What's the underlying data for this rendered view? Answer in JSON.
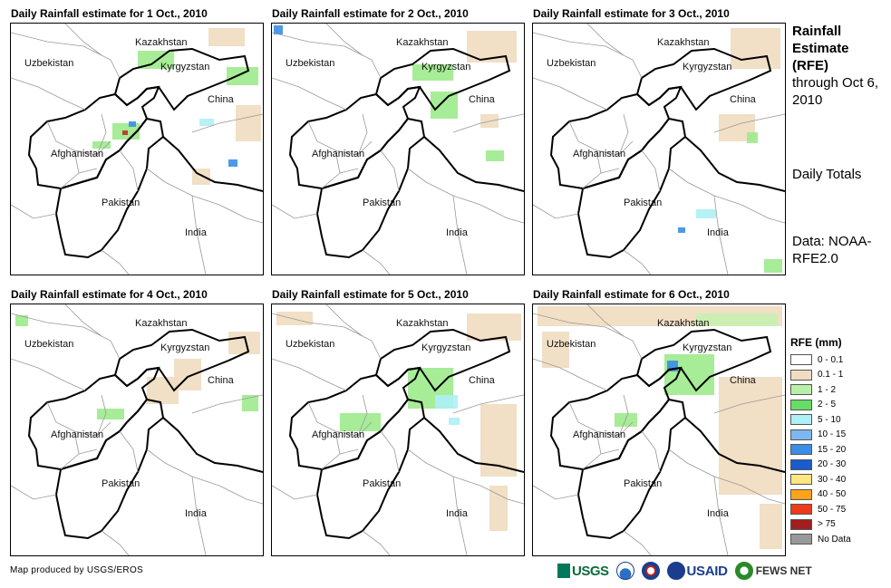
{
  "panels": [
    {
      "title": "Daily Rainfall estimate for 1 Oct., 2010",
      "rain": [
        {
          "x": 218,
          "y": 5,
          "w": 40,
          "h": 20,
          "c": "#f0dcc0"
        },
        {
          "x": 140,
          "y": 30,
          "w": 40,
          "h": 20,
          "c": "#9dea8c"
        },
        {
          "x": 238,
          "y": 48,
          "w": 35,
          "h": 20,
          "c": "#9dea8c"
        },
        {
          "x": 112,
          "y": 110,
          "w": 30,
          "h": 18,
          "c": "#9dea8c"
        },
        {
          "x": 130,
          "y": 108,
          "w": 8,
          "h": 6,
          "c": "#3a8ee6"
        },
        {
          "x": 123,
          "y": 118,
          "w": 6,
          "h": 5,
          "c": "#c03020"
        },
        {
          "x": 90,
          "y": 130,
          "w": 20,
          "h": 8,
          "c": "#9dea8c"
        },
        {
          "x": 248,
          "y": 90,
          "w": 28,
          "h": 40,
          "c": "#f0dcc0"
        },
        {
          "x": 208,
          "y": 105,
          "w": 16,
          "h": 8,
          "c": "#aef0f5"
        },
        {
          "x": 240,
          "y": 150,
          "w": 10,
          "h": 8,
          "c": "#3a8ee6"
        },
        {
          "x": 200,
          "y": 160,
          "w": 20,
          "h": 18,
          "c": "#f0dcc0"
        }
      ]
    },
    {
      "title": "Daily Rainfall estimate for 2 Oct., 2010",
      "rain": [
        {
          "x": 2,
          "y": 2,
          "w": 10,
          "h": 10,
          "c": "#3a8ee6"
        },
        {
          "x": 215,
          "y": 8,
          "w": 55,
          "h": 35,
          "c": "#f0dcc0"
        },
        {
          "x": 155,
          "y": 45,
          "w": 45,
          "h": 18,
          "c": "#9dea8c"
        },
        {
          "x": 175,
          "y": 75,
          "w": 30,
          "h": 30,
          "c": "#9dea8c"
        },
        {
          "x": 230,
          "y": 100,
          "w": 20,
          "h": 15,
          "c": "#f0dcc0"
        },
        {
          "x": 236,
          "y": 140,
          "w": 20,
          "h": 12,
          "c": "#9dea8c"
        }
      ]
    },
    {
      "title": "Daily Rainfall estimate for 3 Oct., 2010",
      "rain": [
        {
          "x": 218,
          "y": 5,
          "w": 55,
          "h": 45,
          "c": "#f0dcc0"
        },
        {
          "x": 205,
          "y": 100,
          "w": 40,
          "h": 30,
          "c": "#f0dcc0"
        },
        {
          "x": 236,
          "y": 120,
          "w": 12,
          "h": 12,
          "c": "#9dea8c"
        },
        {
          "x": 180,
          "y": 205,
          "w": 22,
          "h": 10,
          "c": "#aef0f5"
        },
        {
          "x": 160,
          "y": 225,
          "w": 8,
          "h": 6,
          "c": "#3a8ee6"
        },
        {
          "x": 255,
          "y": 260,
          "w": 20,
          "h": 15,
          "c": "#9dea8c"
        }
      ]
    },
    {
      "title": "Daily Rainfall estimate for 4 Oct., 2010",
      "rain": [
        {
          "x": 5,
          "y": 12,
          "w": 14,
          "h": 12,
          "c": "#9dea8c"
        },
        {
          "x": 240,
          "y": 30,
          "w": 35,
          "h": 25,
          "c": "#f0dcc0"
        },
        {
          "x": 150,
          "y": 80,
          "w": 35,
          "h": 30,
          "c": "#f0dcc0"
        },
        {
          "x": 180,
          "y": 60,
          "w": 30,
          "h": 35,
          "c": "#f0dcc0"
        },
        {
          "x": 95,
          "y": 115,
          "w": 30,
          "h": 12,
          "c": "#9dea8c"
        },
        {
          "x": 255,
          "y": 100,
          "w": 18,
          "h": 18,
          "c": "#9dea8c"
        }
      ]
    },
    {
      "title": "Daily Rainfall estimate for 5 Oct., 2010",
      "rain": [
        {
          "x": 5,
          "y": 8,
          "w": 40,
          "h": 15,
          "c": "#f0dcc0"
        },
        {
          "x": 215,
          "y": 10,
          "w": 60,
          "h": 30,
          "c": "#f0dcc0"
        },
        {
          "x": 150,
          "y": 70,
          "w": 50,
          "h": 45,
          "c": "#9dea8c"
        },
        {
          "x": 180,
          "y": 100,
          "w": 25,
          "h": 15,
          "c": "#aef0f5"
        },
        {
          "x": 75,
          "y": 120,
          "w": 45,
          "h": 20,
          "c": "#9dea8c"
        },
        {
          "x": 230,
          "y": 110,
          "w": 40,
          "h": 80,
          "c": "#f0dcc0"
        },
        {
          "x": 240,
          "y": 200,
          "w": 20,
          "h": 50,
          "c": "#f0dcc0"
        },
        {
          "x": 195,
          "y": 125,
          "w": 12,
          "h": 8,
          "c": "#aef0f5"
        }
      ]
    },
    {
      "title": "Daily Rainfall estimate for 6 Oct., 2010",
      "rain": [
        {
          "x": 5,
          "y": 2,
          "w": 270,
          "h": 22,
          "c": "#f0dcc0"
        },
        {
          "x": 180,
          "y": 10,
          "w": 90,
          "h": 14,
          "c": "#c8f0b0"
        },
        {
          "x": 145,
          "y": 55,
          "w": 55,
          "h": 45,
          "c": "#9dea8c"
        },
        {
          "x": 148,
          "y": 62,
          "w": 12,
          "h": 12,
          "c": "#3a8ee6"
        },
        {
          "x": 90,
          "y": 120,
          "w": 25,
          "h": 15,
          "c": "#9dea8c"
        },
        {
          "x": 205,
          "y": 80,
          "w": 70,
          "h": 130,
          "c": "#f0dcc0"
        },
        {
          "x": 10,
          "y": 30,
          "w": 30,
          "h": 40,
          "c": "#f0dcc0"
        },
        {
          "x": 250,
          "y": 220,
          "w": 25,
          "h": 50,
          "c": "#f0dcc0"
        }
      ]
    }
  ],
  "labels": {
    "kazakhstan": "Kazakhstan",
    "kyrgyzstan": "Kyrgyzstan",
    "uzbekistan": "Uzbekistan",
    "china": "China",
    "afghanistan": "Afghanistan",
    "pakistan": "Pakistan",
    "india": "India"
  },
  "side": {
    "title_bold": "Rainfall Estimate (RFE)",
    "title_rest": "through Oct 6, 2010",
    "daily": "Daily Totals",
    "data": "Data: NOAA-RFE2.0"
  },
  "legend": {
    "title": "RFE (mm)",
    "items": [
      {
        "label": "0 - 0.1",
        "color": "#ffffff"
      },
      {
        "label": "0.1 - 1",
        "color": "#f0dcc0"
      },
      {
        "label": "1 - 2",
        "color": "#b8f0a8"
      },
      {
        "label": "2 - 5",
        "color": "#66dd66"
      },
      {
        "label": "5 - 10",
        "color": "#aef0f5"
      },
      {
        "label": "10 - 15",
        "color": "#7db8f0"
      },
      {
        "label": "15 - 20",
        "color": "#3a8ee6"
      },
      {
        "label": "20 - 30",
        "color": "#1a5ccc"
      },
      {
        "label": "30 - 40",
        "color": "#ffe680"
      },
      {
        "label": "40 - 50",
        "color": "#ffa31a"
      },
      {
        "label": "50 - 75",
        "color": "#ee3a1a"
      },
      {
        "label": "> 75",
        "color": "#a01e1e"
      },
      {
        "label": "No Data",
        "color": "#999999"
      }
    ]
  },
  "credit": "Map produced by USGS/EROS",
  "logos": {
    "usgs": "USGS",
    "usaid": "USAID",
    "fews": "FEWS NET"
  }
}
